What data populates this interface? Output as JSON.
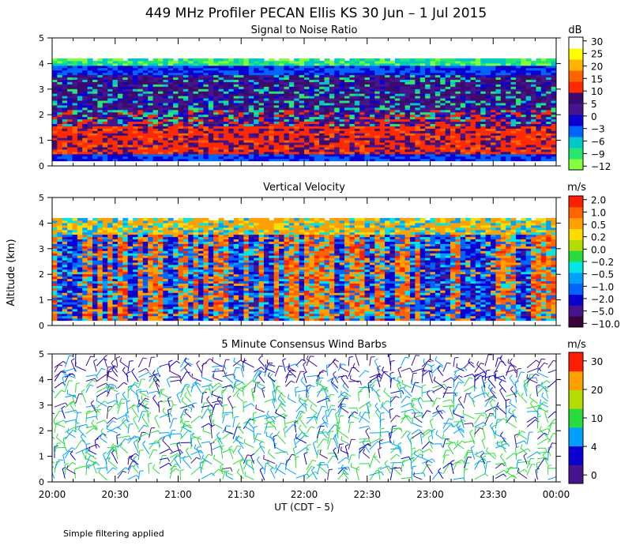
{
  "figure_title": "449 MHz Profiler PECAN Ellis KS 30 Jun –  1 Jul 2015",
  "footnote": "Simple filtering applied",
  "shared_axes": {
    "ylabel": "Altitude (km)",
    "xlabel": "UT  (CDT – 5)",
    "y_ticks": [
      "0",
      "1",
      "2",
      "3",
      "4",
      "5"
    ],
    "x_ticks": [
      "20:00",
      "20:30",
      "21:00",
      "21:30",
      "22:00",
      "22:30",
      "23:00",
      "23:30",
      "00:00"
    ],
    "ylim": [
      0,
      5
    ],
    "xlim_hours": [
      20,
      24
    ]
  },
  "colors": {
    "snr_scale": [
      "#84ff3c",
      "#28e66e",
      "#00c8c8",
      "#0064ff",
      "#0a00d2",
      "#46148c",
      "#3c0a6e",
      "#ff2a00",
      "#ff6400",
      "#ffb400",
      "#ffff00",
      "#ffffff"
    ],
    "w_scale": [
      "#3c003c",
      "#46148c",
      "#0a00d2",
      "#0064ff",
      "#00a0ff",
      "#00e6e6",
      "#28dc3c",
      "#b4dc00",
      "#ffdc00",
      "#ffa000",
      "#ff6400",
      "#ff1e00"
    ],
    "wind_scale": [
      "#46148c",
      "#0a00d2",
      "#00a0ff",
      "#28dc3c",
      "#b4dc00",
      "#ffa000",
      "#ff1e00"
    ]
  },
  "chart_data": [
    {
      "type": "heatmap",
      "title": "Signal to Noise Ratio",
      "xlabel": "UT  (CDT – 5)",
      "ylabel": "Altitude (km)",
      "ylim": [
        0,
        5
      ],
      "colorbar": {
        "unit": "dB",
        "labels": [
          "30",
          "25",
          "20",
          "15",
          "10",
          "5",
          "0",
          "−3",
          "−6",
          "−9",
          "−12"
        ]
      },
      "data_top_km": 4.2,
      "profile_description": [
        "strong echo (>10 dB) below ~1.5 km",
        "purple 0–5 dB layer 1.5–3.8 km",
        "weak echo (<0 dB) near 4 km top"
      ]
    },
    {
      "type": "heatmap",
      "title": "Vertical Velocity",
      "xlabel": "UT  (CDT – 5)",
      "ylabel": "Altitude (km)",
      "ylim": [
        0,
        5
      ],
      "colorbar": {
        "unit": "m/s",
        "labels": [
          "2.0",
          "1.0",
          "0.5",
          "0.2",
          "0.0",
          "−0.2",
          "−0.5",
          "−1.0",
          "−2.0",
          "−5.0",
          "−10.0"
        ]
      },
      "data_top_km": 4.2
    },
    {
      "type": "scatter",
      "title": "5 Minute Consensus Wind Barbs",
      "xlabel": "UT  (CDT – 5)",
      "ylabel": "Altitude (km)",
      "ylim": [
        0,
        5
      ],
      "colorbar": {
        "unit": "m/s",
        "labels": [
          "30",
          "20",
          "10",
          "4",
          "0"
        ]
      },
      "interval_minutes": 5,
      "typical_speed_ms": [
        4,
        15
      ]
    }
  ]
}
